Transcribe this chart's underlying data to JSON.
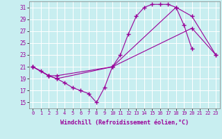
{
  "xlabel": "Windchill (Refroidissement éolien,°C)",
  "bg_color": "#c8eef0",
  "grid_color": "#b0dde0",
  "line_color": "#990099",
  "xlim": [
    -0.5,
    23.5
  ],
  "ylim": [
    14,
    32
  ],
  "xticks": [
    0,
    1,
    2,
    3,
    4,
    5,
    6,
    7,
    8,
    9,
    10,
    11,
    12,
    13,
    14,
    15,
    16,
    17,
    18,
    19,
    20,
    21,
    22,
    23
  ],
  "yticks": [
    15,
    17,
    19,
    21,
    23,
    25,
    27,
    29,
    31
  ],
  "series": [
    {
      "x": [
        0,
        1,
        2,
        3,
        4,
        5,
        6,
        7,
        8,
        9,
        10,
        11,
        12,
        13,
        14,
        15,
        16,
        17,
        18,
        19,
        20
      ],
      "y": [
        21.0,
        20.3,
        19.5,
        19.0,
        18.3,
        17.5,
        17.0,
        16.5,
        15.0,
        17.5,
        21.0,
        23.0,
        26.5,
        29.5,
        31.0,
        31.5,
        31.5,
        31.5,
        31.0,
        28.0,
        24.0
      ]
    },
    {
      "x": [
        0,
        2,
        3,
        10,
        18,
        20,
        23
      ],
      "y": [
        21.0,
        19.5,
        19.0,
        21.0,
        31.0,
        29.5,
        23.0
      ]
    },
    {
      "x": [
        0,
        2,
        3,
        10,
        20,
        23
      ],
      "y": [
        21.0,
        19.5,
        19.5,
        21.0,
        27.5,
        23.0
      ]
    }
  ]
}
